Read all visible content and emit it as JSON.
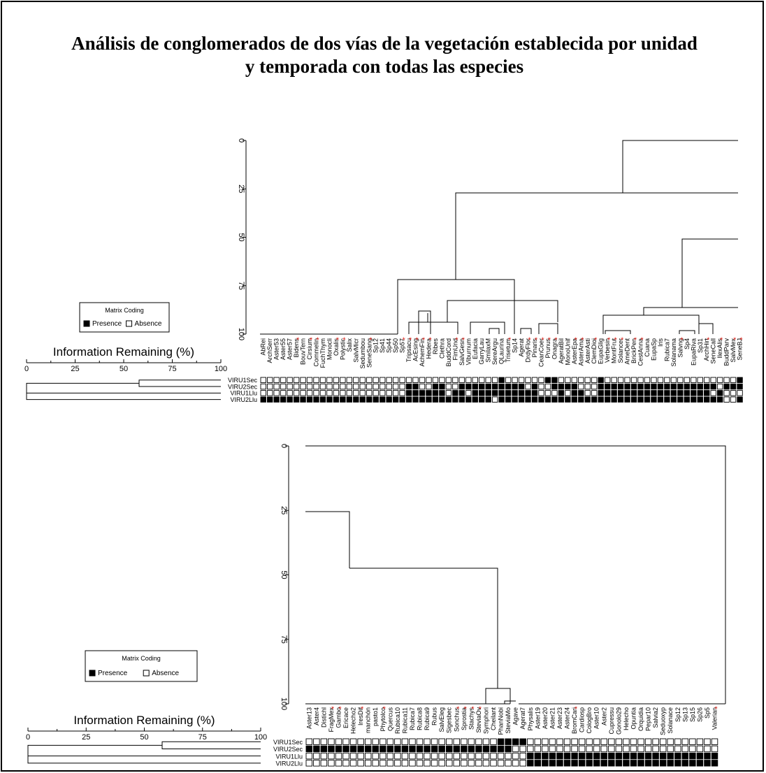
{
  "title": {
    "line1": "Análisis de conglomerados de dos vías de la vegetación establecida por unidad",
    "line2": "y temporada con todas las especies"
  },
  "colors": {
    "ink": "#000000",
    "marker": "#e0261e",
    "background": "#ffffff"
  },
  "legend": {
    "title": "Matrix Coding",
    "presence_label": "Presence",
    "absence_label": "Absence"
  },
  "info_axis": {
    "title": "Information Remaining (%)",
    "ticks": [
      "0",
      "25",
      "50",
      "75",
      "100"
    ]
  },
  "vertical_axis": {
    "ticks": [
      "0",
      "25",
      "50",
      "75",
      "100"
    ]
  },
  "panels": [
    {
      "rows": [
        "VIRU1Sec",
        "VIRU2Sec",
        "VIRU1Llu",
        "VIRU2Llu"
      ],
      "species": [
        "AbRei",
        "ArchSerr",
        "Aster53",
        "Aster55",
        "Aster57",
        "Bidens",
        "BouvTern",
        "Cirsium",
        "Commelin",
        "FuchThym",
        "Monocli",
        "Oxalis",
        "Polystic",
        "Salix",
        "SalvMicr",
        "Sedumbou",
        "SeneSang",
        "Sp12",
        "Sp41",
        "Sp44",
        "Sp50",
        "Sp57",
        "Tripsacu",
        "AcEsing",
        "AchemFin",
        "Hedera",
        "Ribes",
        "Clethra",
        "BuddCord",
        "FimUnd",
        "SalvGesn",
        "Viburnum",
        "Eufacia",
        "GarryLau",
        "SmilaxM",
        "SereArgu",
        "QLaurina",
        "Trisetum",
        "Sp14",
        "Agerat",
        "DrdyFlor",
        "Pinaris",
        "CeanCoer",
        "Prunus",
        "Onagra",
        "AgeratBil",
        "MonoUnif",
        "AsterEpa",
        "AsterAma",
        "AsterAsti",
        "ClemDioi",
        "EupaGlig",
        "Verbesin",
        "MontFrut",
        "Solancer",
        "AmeDent",
        "BrickPen",
        "CestAnna",
        "Cuana",
        "EupaSp",
        "Iris",
        "Rubica7",
        "Solanama",
        "Salvng",
        "Sp4",
        "EupaRiva",
        "Sp31",
        "ArchHirt",
        "SeneCall",
        "IlexAlis",
        "BuddParv",
        "SalvMex",
        "SeneBJ"
      ],
      "starred": [
        5,
        7,
        8,
        11,
        12,
        16,
        21,
        22,
        23,
        24,
        25,
        29,
        30,
        37,
        40,
        41,
        42,
        43,
        44,
        47,
        48,
        50,
        52,
        53,
        54,
        56,
        57,
        63,
        67,
        69,
        71,
        72
      ],
      "matrix": [
        "0000000000000000000000000000000000001000000110000001000000000000000000001",
        "0000000000000000000000110011001111111111010011110001111111111111111110111",
        "0000000000000000000000111111011011111111110001011001111111111111111101000",
        "1111111111111111111111111111111111101111111111111111111111111111111111001"
      ]
    },
    {
      "rows": [
        "VIRU1Sec",
        "VIRU2Sec",
        "VIRU1Llu",
        "VIRU2Llu"
      ],
      "species": [
        "Aster13",
        "Aster4",
        "Distichl",
        "FragMex",
        "Gambo",
        "Ericace",
        "Helecho2",
        "IresDif",
        "manchón",
        "pasto1",
        "Phytolco",
        "Quercus",
        "Rubica10",
        "Rubica11",
        "Rubica7",
        "Rubica8",
        "Rubica9",
        "Rubus",
        "SalvEleg",
        "Sigesbec",
        "Sonchus",
        "Sprostia",
        "Stachys",
        "SteviaOv",
        "Symphori",
        "Cheilant",
        "PhanNobi",
        "SteviaMo",
        "Agave",
        "Agerat7",
        "Physalis",
        "Aster19",
        "Aster20",
        "Aster21",
        "Aster23",
        "Aster24",
        "BromCari",
        "Cardiosp",
        "CologBro",
        "Aster10",
        "Aster2",
        "Cupressu",
        "Gonolo29",
        "Helecho",
        "Opuntia",
        "Orquidia",
        "Pepar10",
        "Salvia2",
        "Seduoxyp",
        "Solanace",
        "Sp12",
        "Sp13",
        "Sp15",
        "Sp26",
        "Sp5",
        "Valerian"
      ],
      "starred": [
        3,
        4,
        7,
        10,
        20,
        21,
        22,
        23,
        36,
        55
      ],
      "matrix": [
        "00000000000000000000000000111100000000000000000000000000",
        "11111111111111111111111111110000000000000000000000000000",
        "00000000000000000000000000000011111111111111111111111111",
        "00000000000000000000000000000011111111111111111111111111"
      ]
    }
  ]
}
